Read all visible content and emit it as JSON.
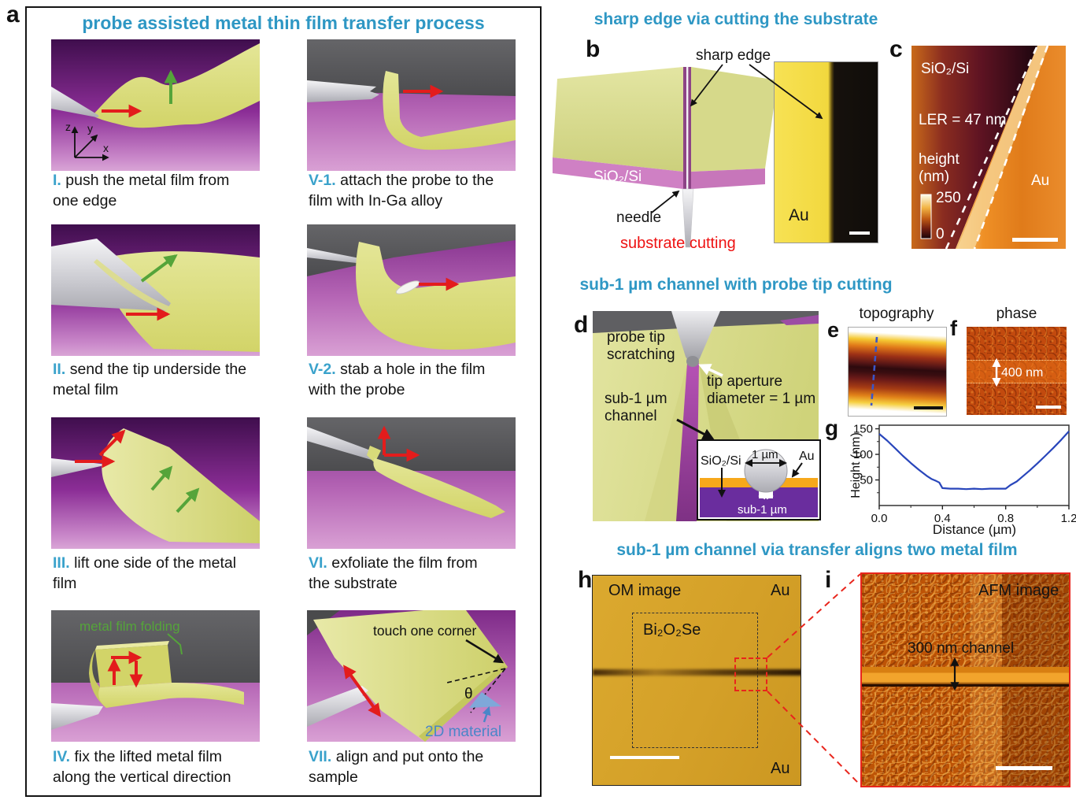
{
  "panel_a": {
    "label": "a",
    "title": "probe assisted metal thin film transfer process",
    "axes": {
      "x": "x",
      "y": "y",
      "z": "z"
    },
    "steps": [
      {
        "num": "I.",
        "line1": "push the metal film from",
        "line2": "one edge"
      },
      {
        "num": "V-1.",
        "line1": "attach the probe to the",
        "line2": "film with In-Ga alloy"
      },
      {
        "num": "II.",
        "line1": "send the tip underside the",
        "line2": "metal film"
      },
      {
        "num": "V-2.",
        "line1": "stab a hole in the film",
        "line2": "with the probe"
      },
      {
        "num": "III.",
        "line1": "lift one side of the metal",
        "line2": "film"
      },
      {
        "num": "VI.",
        "line1": "exfoliate the film from",
        "line2": "the substrate"
      },
      {
        "num": "IV.",
        "line1": "fix the lifted metal film",
        "line2": "along the vertical direction"
      },
      {
        "num": "VII.",
        "line1": "align and put onto the",
        "line2": "sample"
      }
    ],
    "annotations": {
      "folding": "metal film folding",
      "touch": "touch one corner",
      "theta": "θ",
      "material2d": "2D material"
    }
  },
  "panel_b": {
    "label": "b",
    "title": "sharp edge via cutting the substrate",
    "annotations": {
      "sharp_edge": "sharp edge",
      "substrate": "SiO₂/Si",
      "needle": "needle",
      "cutting": "substrate cutting",
      "au": "Au"
    }
  },
  "panel_c": {
    "label": "c",
    "annotations": {
      "substrate": "SiO₂/Si",
      "ler": "LER = 47 nm",
      "height": "height",
      "unit": "(nm)",
      "cb_max": "250",
      "cb_min": "0",
      "au": "Au"
    }
  },
  "panel_d": {
    "label": "d",
    "title": "sub-1 µm channel with probe tip cutting",
    "annotations": {
      "scratch1": "probe tip",
      "scratch2": "scratching",
      "aperture1": "tip aperture",
      "aperture2": "diameter = 1 µm",
      "channel1": "sub-1 µm",
      "channel2": "channel"
    },
    "inset": {
      "substrate": "SiO₂/Si",
      "width": "1 µm",
      "au": "Au",
      "sub": "sub-1 µm"
    }
  },
  "panel_e": {
    "label": "e",
    "title": "topography"
  },
  "panel_f": {
    "label": "f",
    "title": "phase",
    "annotation": "400 nm"
  },
  "panel_g": {
    "label": "g"
  },
  "panel_h": {
    "label": "h",
    "title": "sub-1 µm channel via transfer aligns two metal film",
    "annotations": {
      "om": "OM image",
      "au_top": "Au",
      "au_bottom": "Au",
      "material": "Bi₂O₂Se"
    }
  },
  "panel_i": {
    "label": "i",
    "annotations": {
      "afm": "AFM image",
      "channel": "300 nm channel"
    }
  },
  "colors": {
    "heading": "#2e97c4",
    "red": "#e31c1c",
    "green": "#55a43a",
    "blue2d": "#4a86c8"
  },
  "chart_data": {
    "type": "line",
    "title": "",
    "xlabel": "Distance (µm)",
    "ylabel": "Height (nm)",
    "xlim": [
      0,
      1.2
    ],
    "ylim": [
      0,
      157
    ],
    "xticks": [
      0.0,
      0.4,
      0.8,
      1.2
    ],
    "xtick_labels": [
      "0.0",
      "0.4",
      "0.8",
      "1.2"
    ],
    "xticks_minor": [
      0.2,
      0.6,
      1.0
    ],
    "yticks": [
      50,
      100,
      150
    ],
    "yticks_minor": [
      25,
      75,
      125
    ],
    "grid": false,
    "legend": "none",
    "line_color": "#2946bb",
    "points": [
      [
        0,
        140
      ],
      [
        0.05,
        127
      ],
      [
        0.1,
        112
      ],
      [
        0.15,
        97
      ],
      [
        0.2,
        83
      ],
      [
        0.25,
        70
      ],
      [
        0.3,
        58
      ],
      [
        0.33,
        52
      ],
      [
        0.36,
        48
      ],
      [
        0.38,
        45
      ],
      [
        0.4,
        34
      ],
      [
        0.45,
        33
      ],
      [
        0.5,
        33
      ],
      [
        0.55,
        32
      ],
      [
        0.6,
        33
      ],
      [
        0.65,
        32
      ],
      [
        0.7,
        33
      ],
      [
        0.75,
        33
      ],
      [
        0.8,
        33
      ],
      [
        0.83,
        40
      ],
      [
        0.87,
        47
      ],
      [
        0.9,
        55
      ],
      [
        0.95,
        68
      ],
      [
        1.0,
        82
      ],
      [
        1.05,
        97
      ],
      [
        1.1,
        112
      ],
      [
        1.15,
        128
      ],
      [
        1.2,
        145
      ]
    ]
  }
}
